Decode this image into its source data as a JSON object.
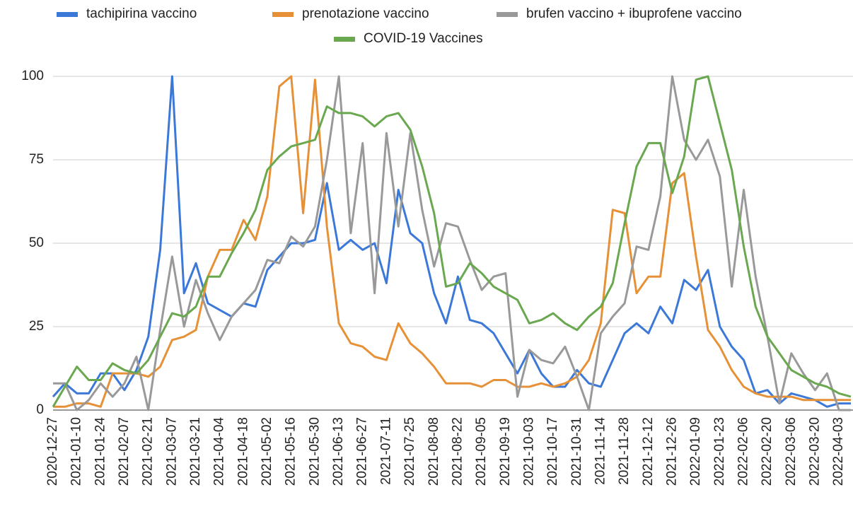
{
  "chart_data": {
    "type": "line",
    "categories": [
      "2020-12-27",
      null,
      "2021-01-10",
      null,
      "2021-01-24",
      null,
      "2021-02-07",
      null,
      "2021-02-21",
      null,
      "2021-03-07",
      null,
      "2021-03-21",
      null,
      "2021-04-04",
      null,
      "2021-04-18",
      null,
      "2021-05-02",
      null,
      "2021-05-16",
      null,
      "2021-05-30",
      null,
      "2021-06-13",
      null,
      "2021-06-27",
      null,
      "2021-07-11",
      null,
      "2021-07-25",
      null,
      "2021-08-08",
      null,
      "2021-08-22",
      null,
      "2021-09-05",
      null,
      "2021-09-19",
      null,
      "2021-10-03",
      null,
      "2021-10-17",
      null,
      "2021-10-31",
      null,
      "2021-11-14",
      null,
      "2021-11-28",
      null,
      "2021-12-12",
      null,
      "2021-12-26",
      null,
      "2022-01-09",
      null,
      "2022-01-23",
      null,
      "2022-02-06",
      null,
      "2022-02-20",
      null,
      "2022-03-06",
      null,
      "2022-03-20",
      null,
      "2022-04-03",
      null
    ],
    "series": [
      {
        "name": "tachipirina vaccino",
        "color": "#3c78d8",
        "values": [
          4,
          8,
          5,
          5,
          11,
          11,
          6,
          12,
          22,
          48,
          100,
          35,
          44,
          32,
          30,
          28,
          32,
          31,
          42,
          46,
          50,
          50,
          51,
          68,
          48,
          51,
          48,
          50,
          38,
          66,
          53,
          50,
          35,
          26,
          40,
          27,
          26,
          23,
          17,
          11,
          18,
          11,
          7,
          7,
          12,
          8,
          7,
          15,
          23,
          26,
          23,
          31,
          26,
          39,
          36,
          42,
          25,
          19,
          15,
          5,
          6,
          2,
          5,
          4,
          3,
          1,
          2,
          2
        ]
      },
      {
        "name": "prenotazione vaccino",
        "color": "#e69138",
        "values": [
          1,
          1,
          2,
          2,
          1,
          11,
          11,
          11,
          10,
          13,
          21,
          22,
          24,
          40,
          48,
          48,
          57,
          51,
          64,
          97,
          100,
          59,
          99,
          55,
          26,
          20,
          19,
          16,
          15,
          26,
          20,
          17,
          13,
          8,
          8,
          8,
          7,
          9,
          9,
          7,
          7,
          8,
          7,
          8,
          10,
          15,
          26,
          60,
          59,
          35,
          40,
          40,
          68,
          71,
          46,
          24,
          19,
          12,
          7,
          5,
          4,
          4,
          4,
          3,
          3,
          3,
          3,
          3
        ]
      },
      {
        "name": "brufen vaccino + ibuprofene vaccino",
        "color": "#999999",
        "values": [
          8,
          8,
          0,
          3,
          8,
          4,
          8,
          16,
          0,
          24,
          46,
          25,
          39,
          29,
          21,
          28,
          32,
          36,
          45,
          44,
          52,
          49,
          55,
          75,
          100,
          53,
          80,
          35,
          83,
          55,
          83,
          60,
          43,
          56,
          55,
          45,
          36,
          40,
          41,
          4,
          18,
          15,
          14,
          19,
          10,
          0,
          23,
          28,
          32,
          49,
          48,
          64,
          100,
          81,
          75,
          81,
          70,
          37,
          66,
          40,
          22,
          2,
          17,
          11,
          6,
          11,
          0,
          0
        ]
      },
      {
        "name": "COVID-19 Vaccines",
        "color": "#6aa84f",
        "values": [
          1,
          7,
          13,
          9,
          9,
          14,
          12,
          11,
          15,
          22,
          29,
          28,
          31,
          40,
          40,
          47,
          53,
          60,
          72,
          76,
          79,
          80,
          81,
          91,
          89,
          89,
          88,
          85,
          88,
          89,
          84,
          73,
          59,
          37,
          38,
          44,
          41,
          37,
          35,
          33,
          26,
          27,
          29,
          26,
          24,
          28,
          31,
          38,
          56,
          73,
          80,
          80,
          65,
          76,
          99,
          100,
          86,
          72,
          49,
          31,
          22,
          17,
          12,
          10,
          8,
          7,
          5,
          4
        ]
      }
    ],
    "ylim": [
      0,
      100
    ],
    "yticks": [
      0,
      25,
      50,
      75,
      100
    ],
    "grid": true,
    "legend": "top"
  }
}
